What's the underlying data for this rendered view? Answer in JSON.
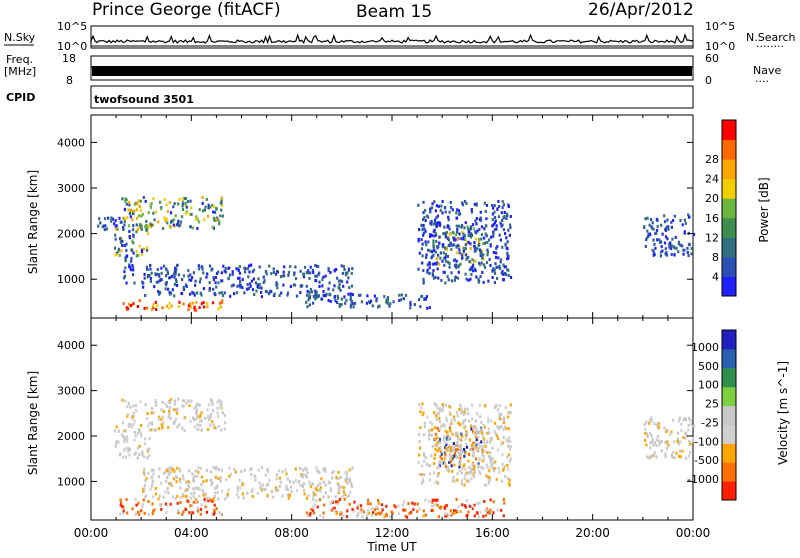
{
  "header": {
    "station": "Prince George (fitACF)",
    "beam": "Beam 15",
    "date": "26/Apr/2012"
  },
  "top_panels": {
    "nsky_label": "N.Sky",
    "nsearch_label": "N.Search",
    "nsky_ticks": [
      "10^5",
      "10^0"
    ],
    "nsearch_ticks": [
      "10^5",
      "10^0"
    ],
    "nsearch_dots": "........",
    "freq_label_1": "Freq.",
    "freq_label_2": "[MHz]",
    "freq_ticks": [
      "18",
      "8"
    ],
    "nave_label": "Nave",
    "nave_ticks": [
      "60",
      "0"
    ],
    "nave_dots": "....",
    "cpid_label": "CPID",
    "cpid_value": "twofsound 3501"
  },
  "chart_data": [
    {
      "type": "heatmap",
      "panel": "power",
      "ylabel": "Slant Range [km]",
      "ylim": [
        150,
        4600
      ],
      "yticks": [
        1000,
        2000,
        3000,
        4000
      ],
      "xlim_hours": [
        0,
        24
      ],
      "colorbar": {
        "label": "Power [dB]",
        "ticks": [
          4,
          8,
          12,
          16,
          20,
          24,
          28
        ],
        "range": [
          0,
          30
        ],
        "colors": [
          "#1f1fff",
          "#2a50b8",
          "#2f6f7f",
          "#3e8f4f",
          "#6ab640",
          "#f2d000",
          "#ffa500",
          "#ff6a00",
          "#ff0000"
        ]
      },
      "regions": [
        {
          "t0": 0.0,
          "t1": 1.2,
          "r0": 2050,
          "r1": 2350,
          "level": "low"
        },
        {
          "t0": 1.2,
          "t1": 5.3,
          "r0": 2100,
          "r1": 2800,
          "level": "mid"
        },
        {
          "t0": 0.9,
          "t1": 2.3,
          "r0": 1500,
          "r1": 2200,
          "level": "mid"
        },
        {
          "t0": 1.1,
          "t1": 5.2,
          "r0": 300,
          "r1": 520,
          "level": "high"
        },
        {
          "t0": 1.2,
          "t1": 1.7,
          "r0": 900,
          "r1": 1800,
          "level": "low"
        },
        {
          "t0": 2.0,
          "t1": 10.4,
          "r0": 600,
          "r1": 1300,
          "level": "low"
        },
        {
          "t0": 8.5,
          "t1": 13.5,
          "r0": 350,
          "r1": 650,
          "level": "low"
        },
        {
          "t0": 13.6,
          "t1": 15.6,
          "r0": 1300,
          "r1": 2200,
          "level": "mid"
        },
        {
          "t0": 13.0,
          "t1": 16.7,
          "r0": 900,
          "r1": 2700,
          "level": "low"
        },
        {
          "t0": 22.0,
          "t1": 24.0,
          "r0": 1500,
          "r1": 2400,
          "level": "low"
        }
      ]
    },
    {
      "type": "heatmap",
      "panel": "velocity",
      "xlabel": "Time UT",
      "ylabel": "Slant Range [km]",
      "ylim": [
        150,
        4600
      ],
      "yticks": [
        1000,
        2000,
        3000,
        4000
      ],
      "xlim_hours": [
        0,
        24
      ],
      "xticks": [
        "00:00",
        "04:00",
        "08:00",
        "12:00",
        "16:00",
        "20:00",
        "00:00"
      ],
      "colorbar": {
        "label": "Velocity [m s^-1]",
        "ticks": [
          "1000",
          "500",
          "100",
          "25",
          "-25",
          "-100",
          "-500",
          "-1000"
        ],
        "colors": [
          "#2020c0",
          "#2a60b0",
          "#2f8f4f",
          "#7cd040",
          "#c8c8c8",
          "#d0d0d0",
          "#ffa500",
          "#ff7000",
          "#ff2000"
        ]
      },
      "regions": [
        {
          "t0": 1.2,
          "t1": 5.3,
          "r0": 2100,
          "r1": 2800,
          "level": "ground"
        },
        {
          "t0": 0.9,
          "t1": 2.3,
          "r0": 1500,
          "r1": 2200,
          "level": "ground"
        },
        {
          "t0": 1.1,
          "t1": 5.2,
          "r0": 250,
          "r1": 600,
          "level": "neg"
        },
        {
          "t0": 2.0,
          "t1": 10.4,
          "r0": 600,
          "r1": 1300,
          "level": "ground"
        },
        {
          "t0": 8.5,
          "t1": 16.5,
          "r0": 200,
          "r1": 600,
          "level": "neg"
        },
        {
          "t0": 13.6,
          "t1": 15.6,
          "r0": 1300,
          "r1": 2200,
          "level": "mixed"
        },
        {
          "t0": 13.0,
          "t1": 16.7,
          "r0": 900,
          "r1": 2700,
          "level": "ground"
        },
        {
          "t0": 22.0,
          "t1": 24.0,
          "r0": 1500,
          "r1": 2400,
          "level": "ground"
        }
      ]
    }
  ]
}
